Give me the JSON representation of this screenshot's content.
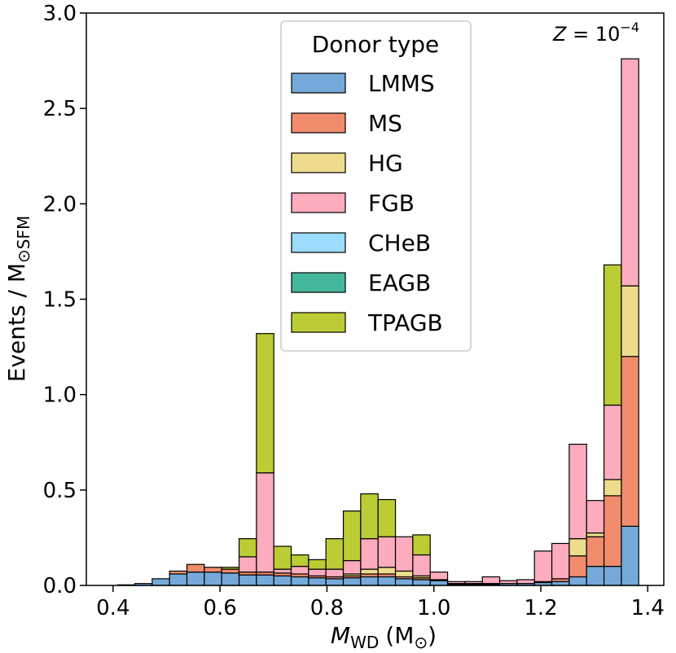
{
  "chart_data": {
    "type": "bar",
    "stacked": true,
    "title": "",
    "xlabel_symbol": "M",
    "xlabel_sub": "WD",
    "xlabel_unit": "(M",
    "xlabel_unit_sub": "⊙",
    "xlabel_close": ")",
    "ylabel": "Events / M",
    "ylabel_sub": "⊙SFM",
    "annotation_symbol": "Z",
    "annotation_eq": " = 10",
    "annotation_exp": "−4",
    "xlim": [
      0.35,
      1.43
    ],
    "ylim": [
      0.0,
      3.0
    ],
    "x_ticks": [
      0.4,
      0.6,
      0.8,
      1.0,
      1.2,
      1.4
    ],
    "x_tick_labels": [
      "0.4",
      "0.6",
      "0.8",
      "1.0",
      "1.2",
      "1.4"
    ],
    "y_ticks": [
      0.0,
      0.5,
      1.0,
      1.5,
      2.0,
      2.5,
      3.0
    ],
    "y_tick_labels": [
      "0.0",
      "0.5",
      "1.0",
      "1.5",
      "2.0",
      "2.5",
      "3.0"
    ],
    "bin_width": 0.0325,
    "bin_centers": [
      0.4244,
      0.4569,
      0.4894,
      0.5219,
      0.5544,
      0.5869,
      0.6194,
      0.6519,
      0.6844,
      0.7169,
      0.7494,
      0.7819,
      0.8144,
      0.8469,
      0.8794,
      0.9119,
      0.9444,
      0.9769,
      1.0094,
      1.0419,
      1.0744,
      1.1069,
      1.1394,
      1.1719,
      1.2044,
      1.2369,
      1.2694,
      1.3019,
      1.3344,
      1.3669
    ],
    "legend_title": "Donor type",
    "series": [
      {
        "name": "LMMS",
        "color": "#74a9da",
        "values": [
          0.003,
          0.01,
          0.035,
          0.06,
          0.07,
          0.07,
          0.065,
          0.055,
          0.055,
          0.05,
          0.045,
          0.04,
          0.035,
          0.04,
          0.045,
          0.045,
          0.035,
          0.03,
          0.025,
          0.005,
          0.005,
          0.005,
          0.01,
          0.01,
          0.015,
          0.02,
          0.045,
          0.1,
          0.1,
          0.31
        ]
      },
      {
        "name": "MS",
        "color": "#f08c6c",
        "values": [
          0.0,
          0.0,
          0.0,
          0.015,
          0.04,
          0.025,
          0.02,
          0.015,
          0.015,
          0.015,
          0.015,
          0.01,
          0.01,
          0.01,
          0.015,
          0.015,
          0.01,
          0.01,
          0.005,
          0.005,
          0.005,
          0.005,
          0.0,
          0.0,
          0.005,
          0.015,
          0.11,
          0.155,
          0.37,
          0.89
        ]
      },
      {
        "name": "HG",
        "color": "#eedc8c",
        "values": [
          0.0,
          0.0,
          0.0,
          0.0,
          0.0,
          0.0,
          0.0,
          0.0,
          0.0,
          0.0,
          0.0,
          0.0,
          0.0,
          0.01,
          0.025,
          0.035,
          0.03,
          0.01,
          0.0,
          0.0,
          0.0,
          0.0,
          0.0,
          0.0,
          0.0,
          0.0,
          0.09,
          0.02,
          0.085,
          0.37
        ]
      },
      {
        "name": "FGB",
        "color": "#fcacbc",
        "values": [
          0.0,
          0.0,
          0.0,
          0.0,
          0.0,
          0.0,
          0.0,
          0.08,
          0.52,
          0.02,
          0.04,
          0.035,
          0.04,
          0.07,
          0.16,
          0.16,
          0.18,
          0.11,
          0.04,
          0.01,
          0.01,
          0.035,
          0.015,
          0.02,
          0.16,
          0.185,
          0.495,
          0.17,
          0.39,
          1.19
        ]
      },
      {
        "name": "CHeB",
        "color": "#9cdcfc",
        "values": [
          0.0,
          0.0,
          0.0,
          0.0,
          0.0,
          0.0,
          0.0,
          0.0,
          0.0,
          0.0,
          0.0,
          0.0,
          0.0,
          0.0,
          0.0,
          0.0,
          0.0,
          0.0,
          0.0,
          0.0,
          0.0,
          0.0,
          0.0,
          0.0,
          0.0,
          0.0,
          0.0,
          0.0,
          0.0,
          0.0
        ]
      },
      {
        "name": "EAGB",
        "color": "#44b89c",
        "values": [
          0.0,
          0.0,
          0.0,
          0.0,
          0.0,
          0.0,
          0.0,
          0.0,
          0.0,
          0.0,
          0.0,
          0.0,
          0.0,
          0.0,
          0.0,
          0.0,
          0.0,
          0.0,
          0.0,
          0.0,
          0.0,
          0.0,
          0.0,
          0.0,
          0.0,
          0.0,
          0.0,
          0.0,
          0.0,
          0.0
        ]
      },
      {
        "name": "TPAGB",
        "color": "#bccc34",
        "values": [
          0.0,
          0.0,
          0.0,
          0.0,
          0.0,
          0.0,
          0.01,
          0.095,
          0.73,
          0.12,
          0.06,
          0.05,
          0.16,
          0.26,
          0.235,
          0.195,
          0.0,
          0.105,
          0.0,
          0.0,
          0.0,
          0.0,
          0.0,
          0.0,
          0.0,
          0.0,
          0.0,
          0.0,
          0.735,
          0.0
        ]
      }
    ],
    "legend_position": "top-center"
  }
}
